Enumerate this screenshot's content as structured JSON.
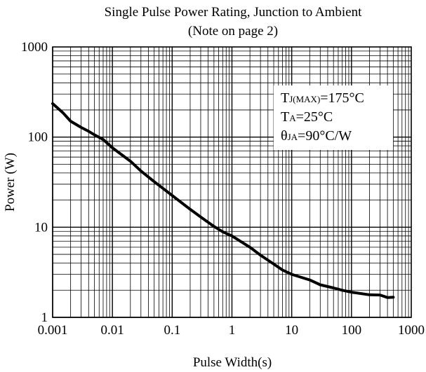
{
  "chart_data": {
    "type": "line",
    "title": "Single Pulse Power Rating, Junction to Ambient",
    "subtitle": "(Note on page 2)",
    "xlabel": "Pulse Width(s)",
    "ylabel": "Power (W)",
    "x_scale": "log",
    "y_scale": "log",
    "xlim": [
      0.001,
      1000
    ],
    "ylim": [
      1,
      1000
    ],
    "grid": true,
    "x_ticks": [
      "0.001",
      "0.01",
      "0.1",
      "1",
      "10",
      "100",
      "1000"
    ],
    "y_ticks": [
      "1",
      "10",
      "100",
      "1000"
    ],
    "series": [
      {
        "x": [
          0.001,
          0.0015,
          0.002,
          0.003,
          0.004,
          0.005,
          0.007,
          0.01,
          0.02,
          0.03,
          0.05,
          0.07,
          0.1,
          0.2,
          0.3,
          0.5,
          0.7,
          1,
          2,
          3,
          5,
          7,
          10,
          20,
          30,
          50,
          70,
          100,
          200,
          300,
          400,
          500
        ],
        "values": [
          235,
          185,
          150,
          128,
          116,
          106,
          94,
          76,
          54,
          42,
          32,
          27,
          22.5,
          15.8,
          13,
          10.2,
          8.9,
          8.0,
          6.0,
          4.9,
          3.9,
          3.35,
          3.0,
          2.6,
          2.3,
          2.12,
          2.0,
          1.9,
          1.78,
          1.77,
          1.66,
          1.67
        ]
      }
    ],
    "annotations": [
      {
        "main": "T",
        "sub": "J(MAX)",
        "rest": "=175°C"
      },
      {
        "main": "T",
        "sub": "A",
        "rest": "=25°C"
      },
      {
        "main": "θ",
        "sub": "JA",
        "rest": "=90°C/W"
      }
    ]
  }
}
